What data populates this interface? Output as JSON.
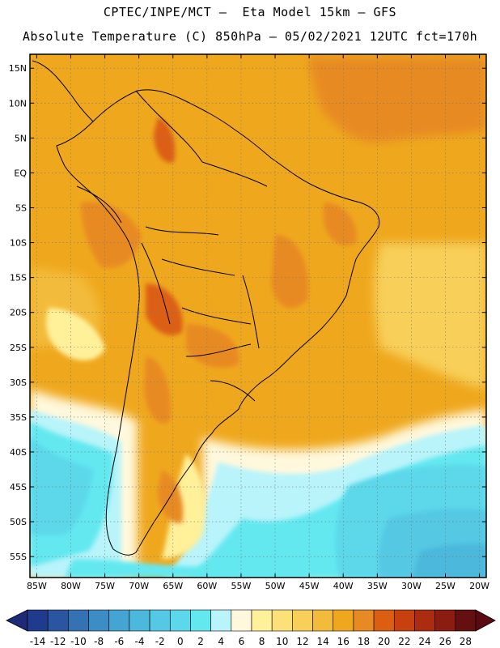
{
  "header": {
    "line1": "CPTEC/INPE/MCT –  Eta Model 15km – GFS",
    "line2": "Absolute Temperature (C) 850hPa – 05/02/2021 12UTC fct=170h"
  },
  "map": {
    "lon_range": [
      -86,
      -19
    ],
    "lat_range": [
      -58,
      17
    ],
    "lat_ticks": [
      "15N",
      "10N",
      "5N",
      "EQ",
      "5S",
      "10S",
      "15S",
      "20S",
      "25S",
      "30S",
      "35S",
      "40S",
      "45S",
      "50S",
      "55S"
    ],
    "lat_values": [
      15,
      10,
      5,
      0,
      -5,
      -10,
      -15,
      -20,
      -25,
      -30,
      -35,
      -40,
      -45,
      -50,
      -55
    ],
    "lon_ticks": [
      "85W",
      "80W",
      "75W",
      "70W",
      "65W",
      "60W",
      "55W",
      "50W",
      "45W",
      "40W",
      "35W",
      "30W",
      "25W",
      "20W"
    ],
    "lon_values": [
      -85,
      -80,
      -75,
      -70,
      -65,
      -60,
      -55,
      -50,
      -45,
      -40,
      -35,
      -30,
      -25,
      -20
    ],
    "grid": true
  },
  "colorbar": {
    "labels": [
      "-14",
      "-12",
      "-10",
      "-8",
      "-6",
      "-4",
      "-2",
      "0",
      "2",
      "4",
      "6",
      "8",
      "10",
      "12",
      "14",
      "16",
      "18",
      "20",
      "22",
      "24",
      "26",
      "28"
    ],
    "colors": [
      "#1f3c8c",
      "#2a55a0",
      "#3472b4",
      "#3c8cc6",
      "#44a4d2",
      "#4cb8dc",
      "#54c8e4",
      "#5cd8ea",
      "#64e8f0",
      "#b8f4fa",
      "#fff8dc",
      "#fff09a",
      "#fde178",
      "#f8cf58",
      "#f3bb3a",
      "#efa81e",
      "#e88a24",
      "#dc5e12",
      "#c84010",
      "#ac2c10",
      "#8c1c10",
      "#641010"
    ]
  }
}
